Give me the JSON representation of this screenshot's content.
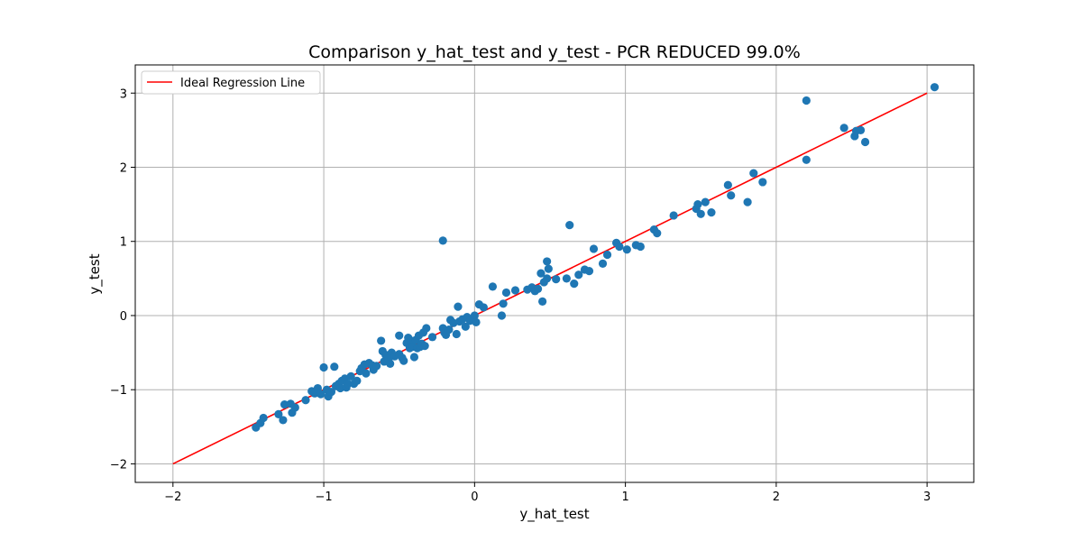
{
  "chart_data": {
    "type": "scatter",
    "title": "Comparison y_hat_test and y_test - PCR REDUCED 99.0%",
    "xlabel": "y_hat_test",
    "ylabel": "y_test",
    "xlim": [
      -2.25,
      3.31
    ],
    "ylim": [
      -2.25,
      3.38
    ],
    "xticks": [
      -2,
      -1,
      0,
      1,
      2,
      3
    ],
    "yticks": [
      -2,
      -1,
      0,
      1,
      2,
      3
    ],
    "xtick_labels": [
      "−2",
      "−1",
      "0",
      "1",
      "2",
      "3"
    ],
    "ytick_labels": [
      "−2",
      "−1",
      "0",
      "1",
      "2",
      "3"
    ],
    "grid": true,
    "legend": {
      "placement": "top-left",
      "entries": [
        "Ideal Regression Line"
      ]
    },
    "ideal_line": {
      "name": "Ideal Regression Line",
      "color": "#ff0000",
      "x": [
        -2,
        3
      ],
      "y": [
        -2,
        3
      ]
    },
    "points_color": "#1f77b4",
    "points": [
      [
        -1.45,
        -1.51
      ],
      [
        -1.42,
        -1.45
      ],
      [
        -1.4,
        -1.38
      ],
      [
        -1.3,
        -1.33
      ],
      [
        -1.27,
        -1.41
      ],
      [
        -1.26,
        -1.2
      ],
      [
        -1.22,
        -1.19
      ],
      [
        -1.21,
        -1.31
      ],
      [
        -1.19,
        -1.24
      ],
      [
        -1.12,
        -1.14
      ],
      [
        -1.08,
        -1.02
      ],
      [
        -1.06,
        -1.05
      ],
      [
        -1.04,
        -0.98
      ],
      [
        -1.02,
        -1.06
      ],
      [
        -1.0,
        -0.7
      ],
      [
        -0.98,
        -1.0
      ],
      [
        -0.97,
        -1.09
      ],
      [
        -0.95,
        -1.03
      ],
      [
        -0.93,
        -0.69
      ],
      [
        -0.92,
        -0.95
      ],
      [
        -0.9,
        -0.92
      ],
      [
        -0.89,
        -0.98
      ],
      [
        -0.88,
        -0.88
      ],
      [
        -0.86,
        -0.85
      ],
      [
        -0.85,
        -0.97
      ],
      [
        -0.84,
        -0.92
      ],
      [
        -0.82,
        -0.82
      ],
      [
        -0.8,
        -0.92
      ],
      [
        -0.78,
        -0.88
      ],
      [
        -0.76,
        -0.75
      ],
      [
        -0.75,
        -0.71
      ],
      [
        -0.73,
        -0.66
      ],
      [
        -0.72,
        -0.78
      ],
      [
        -0.7,
        -0.64
      ],
      [
        -0.68,
        -0.67
      ],
      [
        -0.67,
        -0.73
      ],
      [
        -0.65,
        -0.68
      ],
      [
        -0.62,
        -0.34
      ],
      [
        -0.61,
        -0.48
      ],
      [
        -0.6,
        -0.62
      ],
      [
        -0.59,
        -0.53
      ],
      [
        -0.57,
        -0.58
      ],
      [
        -0.56,
        -0.65
      ],
      [
        -0.55,
        -0.5
      ],
      [
        -0.53,
        -0.55
      ],
      [
        -0.5,
        -0.27
      ],
      [
        -0.5,
        -0.52
      ],
      [
        -0.48,
        -0.57
      ],
      [
        -0.47,
        -0.61
      ],
      [
        -0.45,
        -0.37
      ],
      [
        -0.44,
        -0.3
      ],
      [
        -0.43,
        -0.44
      ],
      [
        -0.42,
        -0.34
      ],
      [
        -0.41,
        -0.42
      ],
      [
        -0.4,
        -0.56
      ],
      [
        -0.39,
        -0.33
      ],
      [
        -0.38,
        -0.44
      ],
      [
        -0.37,
        -0.27
      ],
      [
        -0.36,
        -0.42
      ],
      [
        -0.35,
        -0.38
      ],
      [
        -0.34,
        -0.23
      ],
      [
        -0.33,
        -0.41
      ],
      [
        -0.32,
        -0.17
      ],
      [
        -0.28,
        -0.29
      ],
      [
        -0.21,
        1.01
      ],
      [
        -0.21,
        -0.17
      ],
      [
        -0.2,
        -0.23
      ],
      [
        -0.19,
        -0.26
      ],
      [
        -0.17,
        -0.19
      ],
      [
        -0.16,
        -0.06
      ],
      [
        -0.14,
        -0.1
      ],
      [
        -0.12,
        -0.25
      ],
      [
        -0.11,
        0.12
      ],
      [
        -0.1,
        -0.08
      ],
      [
        -0.08,
        -0.05
      ],
      [
        -0.06,
        -0.15
      ],
      [
        -0.05,
        -0.02
      ],
      [
        -0.03,
        -0.07
      ],
      [
        0.0,
        0.0
      ],
      [
        0.01,
        -0.09
      ],
      [
        0.03,
        0.15
      ],
      [
        0.06,
        0.11
      ],
      [
        0.12,
        0.39
      ],
      [
        0.18,
        0.0
      ],
      [
        0.19,
        0.16
      ],
      [
        0.21,
        0.31
      ],
      [
        0.27,
        0.34
      ],
      [
        0.35,
        0.35
      ],
      [
        0.38,
        0.38
      ],
      [
        0.4,
        0.33
      ],
      [
        0.42,
        0.36
      ],
      [
        0.44,
        0.57
      ],
      [
        0.45,
        0.19
      ],
      [
        0.46,
        0.45
      ],
      [
        0.48,
        0.73
      ],
      [
        0.48,
        0.5
      ],
      [
        0.49,
        0.63
      ],
      [
        0.54,
        0.49
      ],
      [
        0.61,
        0.5
      ],
      [
        0.63,
        1.22
      ],
      [
        0.66,
        0.43
      ],
      [
        0.69,
        0.55
      ],
      [
        0.73,
        0.62
      ],
      [
        0.76,
        0.6
      ],
      [
        0.79,
        0.9
      ],
      [
        0.85,
        0.7
      ],
      [
        0.88,
        0.82
      ],
      [
        0.94,
        0.98
      ],
      [
        0.96,
        0.93
      ],
      [
        1.01,
        0.89
      ],
      [
        1.07,
        0.95
      ],
      [
        1.1,
        0.93
      ],
      [
        1.19,
        1.16
      ],
      [
        1.21,
        1.11
      ],
      [
        1.32,
        1.35
      ],
      [
        1.47,
        1.44
      ],
      [
        1.48,
        1.5
      ],
      [
        1.5,
        1.37
      ],
      [
        1.53,
        1.53
      ],
      [
        1.57,
        1.39
      ],
      [
        1.68,
        1.76
      ],
      [
        1.7,
        1.62
      ],
      [
        1.81,
        1.53
      ],
      [
        1.85,
        1.92
      ],
      [
        1.91,
        1.8
      ],
      [
        2.2,
        2.9
      ],
      [
        2.2,
        2.1
      ],
      [
        2.45,
        2.53
      ],
      [
        2.52,
        2.42
      ],
      [
        2.53,
        2.49
      ],
      [
        2.56,
        2.5
      ],
      [
        2.59,
        2.34
      ],
      [
        3.05,
        3.08
      ]
    ]
  }
}
